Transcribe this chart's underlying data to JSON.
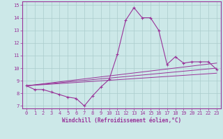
{
  "title": "",
  "xlabel": "Windchill (Refroidissement éolien,°C)",
  "xlim": [
    -0.5,
    23.5
  ],
  "ylim": [
    6.8,
    15.3
  ],
  "xticks": [
    0,
    1,
    2,
    3,
    4,
    5,
    6,
    7,
    8,
    9,
    10,
    11,
    12,
    13,
    14,
    15,
    16,
    17,
    18,
    19,
    20,
    21,
    22,
    23
  ],
  "yticks": [
    7,
    8,
    9,
    10,
    11,
    12,
    13,
    14,
    15
  ],
  "bg_color": "#cce8e8",
  "grid_color": "#aacccc",
  "line_color": "#993399",
  "series_main": {
    "x": [
      0,
      1,
      2,
      3,
      4,
      5,
      6,
      7,
      8,
      9,
      10,
      11,
      12,
      13,
      14,
      15,
      16,
      17,
      18,
      19,
      20,
      21,
      22,
      23
    ],
    "y": [
      8.6,
      8.3,
      8.3,
      8.1,
      7.9,
      7.7,
      7.6,
      7.0,
      7.8,
      8.5,
      9.1,
      11.1,
      13.8,
      14.8,
      14.0,
      14.0,
      13.0,
      10.3,
      10.9,
      10.4,
      10.5,
      10.5,
      10.5,
      9.9
    ]
  },
  "series_linear": [
    {
      "x": [
        0,
        23
      ],
      "y": [
        8.6,
        10.0
      ]
    },
    {
      "x": [
        0,
        23
      ],
      "y": [
        8.6,
        10.4
      ]
    },
    {
      "x": [
        0,
        23
      ],
      "y": [
        8.6,
        9.6
      ]
    }
  ]
}
